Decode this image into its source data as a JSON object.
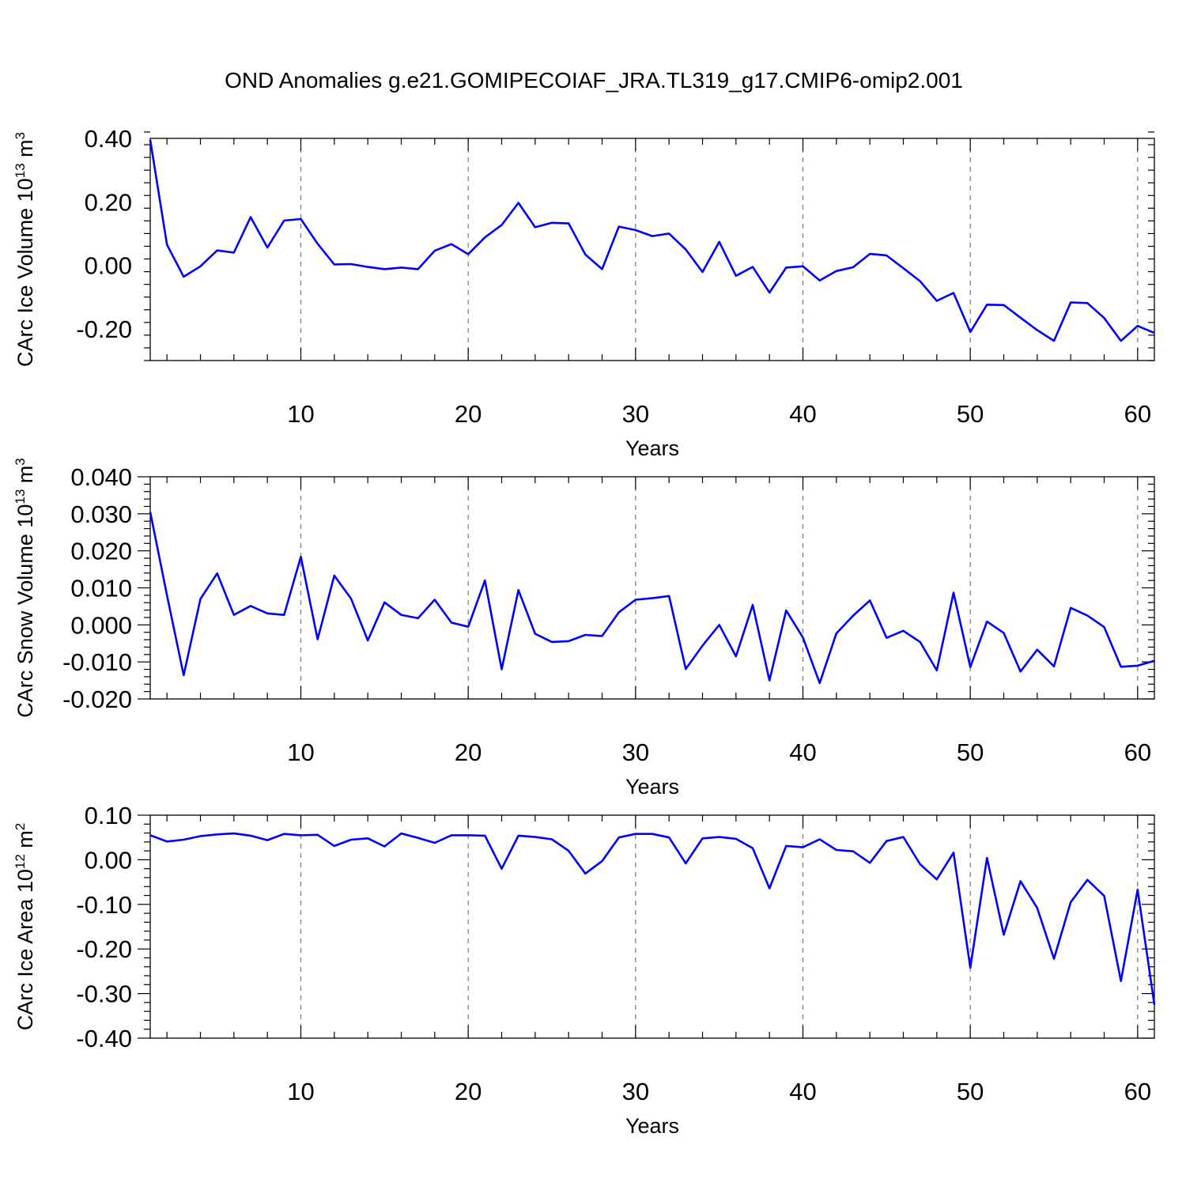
{
  "title": "OND Anomalies g.e21.GOMIPECOIAF_JRA.TL319_g17.CMIP6-omip2.001",
  "colors": {
    "line": "#0000ff",
    "grid": "#777777"
  },
  "chart_data": [
    {
      "type": "line",
      "xlabel": "Years",
      "ylabel": "CArc Ice Volume 10",
      "ylabel_sup": "13",
      "ylabel_unit": "m",
      "ylabel_unit_sup": "3",
      "xlim": [
        1,
        61
      ],
      "ylim": [
        -0.3,
        0.4
      ],
      "xticks": [
        10,
        20,
        30,
        40,
        50,
        60
      ],
      "xtick_labels": [
        "10",
        "20",
        "30",
        "40",
        "50",
        "60"
      ],
      "yticks": [
        -0.2,
        0.0,
        0.2,
        0.4
      ],
      "ytick_labels": [
        "-0.20",
        "0.00",
        "0.20",
        "0.40"
      ],
      "y_minor_step": 0.04,
      "grid": "x-major dashed",
      "x": [
        1,
        2,
        3,
        4,
        5,
        6,
        7,
        8,
        9,
        10,
        11,
        12,
        13,
        14,
        15,
        16,
        17,
        18,
        19,
        20,
        21,
        22,
        23,
        24,
        25,
        26,
        27,
        28,
        29,
        30,
        31,
        32,
        33,
        34,
        35,
        36,
        37,
        38,
        39,
        40,
        41,
        42,
        43,
        44,
        45,
        46,
        47,
        48,
        49,
        50,
        51,
        52,
        53,
        54,
        55,
        56,
        57,
        58,
        59,
        60,
        61
      ],
      "series": [
        {
          "values": [
            0.395,
            0.065,
            -0.036,
            -0.003,
            0.047,
            0.04,
            0.152,
            0.056,
            0.141,
            0.146,
            0.068,
            0.003,
            0.004,
            -0.005,
            -0.012,
            -0.007,
            -0.012,
            0.046,
            0.067,
            0.035,
            0.088,
            0.127,
            0.197,
            0.12,
            0.134,
            0.132,
            0.034,
            -0.012,
            0.122,
            0.111,
            0.092,
            0.1,
            0.05,
            -0.021,
            0.074,
            -0.033,
            -0.005,
            -0.086,
            -0.007,
            -0.003,
            -0.048,
            -0.018,
            -0.006,
            0.036,
            0.031,
            -0.009,
            -0.05,
            -0.112,
            -0.087,
            -0.21,
            -0.124,
            -0.125,
            -0.165,
            -0.204,
            -0.238,
            -0.117,
            -0.119,
            -0.166,
            -0.238,
            -0.191,
            -0.213
          ]
        }
      ]
    },
    {
      "type": "line",
      "xlabel": "Years",
      "ylabel": "CArc Snow Volume 10",
      "ylabel_sup": "13",
      "ylabel_unit": "m",
      "ylabel_unit_sup": "3",
      "xlim": [
        1,
        61
      ],
      "ylim": [
        -0.02,
        0.04
      ],
      "xticks": [
        10,
        20,
        30,
        40,
        50,
        60
      ],
      "xtick_labels": [
        "10",
        "20",
        "30",
        "40",
        "50",
        "60"
      ],
      "yticks": [
        -0.02,
        -0.01,
        0.0,
        0.01,
        0.02,
        0.03,
        0.04
      ],
      "ytick_labels": [
        "-0.020",
        "-0.010",
        "0.000",
        "0.010",
        "0.020",
        "0.030",
        "0.040"
      ],
      "y_minor_step": 0.002,
      "grid": "x-major dashed",
      "x": [
        1,
        2,
        3,
        4,
        5,
        6,
        7,
        8,
        9,
        10,
        11,
        12,
        13,
        14,
        15,
        16,
        17,
        18,
        19,
        20,
        21,
        22,
        23,
        24,
        25,
        26,
        27,
        28,
        29,
        30,
        31,
        32,
        33,
        34,
        35,
        36,
        37,
        38,
        39,
        40,
        41,
        42,
        43,
        44,
        45,
        46,
        47,
        48,
        49,
        50,
        51,
        52,
        53,
        54,
        55,
        56,
        57,
        58,
        59,
        60,
        61
      ],
      "series": [
        {
          "values": [
            0.0305,
            0.008,
            -0.0136,
            0.007,
            0.0139,
            0.0027,
            0.0051,
            0.0031,
            0.0027,
            0.0184,
            -0.0039,
            0.0133,
            0.0071,
            -0.0042,
            0.0061,
            0.0027,
            0.0018,
            0.0068,
            0.0006,
            -0.0005,
            0.012,
            -0.012,
            0.0094,
            -0.0024,
            -0.0046,
            -0.0044,
            -0.0027,
            -0.003,
            0.0034,
            0.0068,
            0.0072,
            0.0078,
            -0.0119,
            -0.0056,
            0.0,
            -0.0085,
            0.0054,
            -0.015,
            0.0039,
            -0.0034,
            -0.0157,
            -0.0023,
            0.0025,
            0.0066,
            -0.0035,
            -0.0016,
            -0.0046,
            -0.0123,
            0.0087,
            -0.0114,
            0.0009,
            -0.0022,
            -0.0126,
            -0.0067,
            -0.0112,
            0.0046,
            0.0025,
            -0.0006,
            -0.0113,
            -0.011,
            -0.0097
          ]
        }
      ]
    },
    {
      "type": "line",
      "xlabel": "Years",
      "ylabel": "CArc Ice Area 10",
      "ylabel_sup": "12",
      "ylabel_unit": "m",
      "ylabel_unit_sup": "2",
      "xlim": [
        1,
        61
      ],
      "ylim": [
        -0.4,
        0.1
      ],
      "xticks": [
        10,
        20,
        30,
        40,
        50,
        60
      ],
      "xtick_labels": [
        "10",
        "20",
        "30",
        "40",
        "50",
        "60"
      ],
      "yticks": [
        -0.4,
        -0.3,
        -0.2,
        -0.1,
        0.0,
        0.1
      ],
      "ytick_labels": [
        "-0.40",
        "-0.30",
        "-0.20",
        "-0.10",
        "0.00",
        "0.10"
      ],
      "y_minor_step": 0.02,
      "grid": "x-major dashed",
      "x": [
        1,
        2,
        3,
        4,
        5,
        6,
        7,
        8,
        9,
        10,
        11,
        12,
        13,
        14,
        15,
        16,
        17,
        18,
        19,
        20,
        21,
        22,
        23,
        24,
        25,
        26,
        27,
        28,
        29,
        30,
        31,
        32,
        33,
        34,
        35,
        36,
        37,
        38,
        39,
        40,
        41,
        42,
        43,
        44,
        45,
        46,
        47,
        48,
        49,
        50,
        51,
        52,
        53,
        54,
        55,
        56,
        57,
        58,
        59,
        60,
        61
      ],
      "series": [
        {
          "values": [
            0.055,
            0.041,
            0.045,
            0.053,
            0.057,
            0.059,
            0.054,
            0.044,
            0.058,
            0.055,
            0.056,
            0.031,
            0.045,
            0.048,
            0.03,
            0.059,
            0.049,
            0.038,
            0.055,
            0.055,
            0.054,
            -0.02,
            0.054,
            0.051,
            0.046,
            0.02,
            -0.031,
            -0.003,
            0.05,
            0.058,
            0.058,
            0.05,
            -0.008,
            0.048,
            0.051,
            0.047,
            0.026,
            -0.064,
            0.031,
            0.028,
            0.046,
            0.022,
            0.019,
            -0.007,
            0.042,
            0.051,
            -0.01,
            -0.044,
            0.016,
            -0.242,
            0.004,
            -0.168,
            -0.048,
            -0.108,
            -0.222,
            -0.095,
            -0.045,
            -0.081,
            -0.272,
            -0.067,
            -0.325
          ]
        }
      ]
    }
  ]
}
